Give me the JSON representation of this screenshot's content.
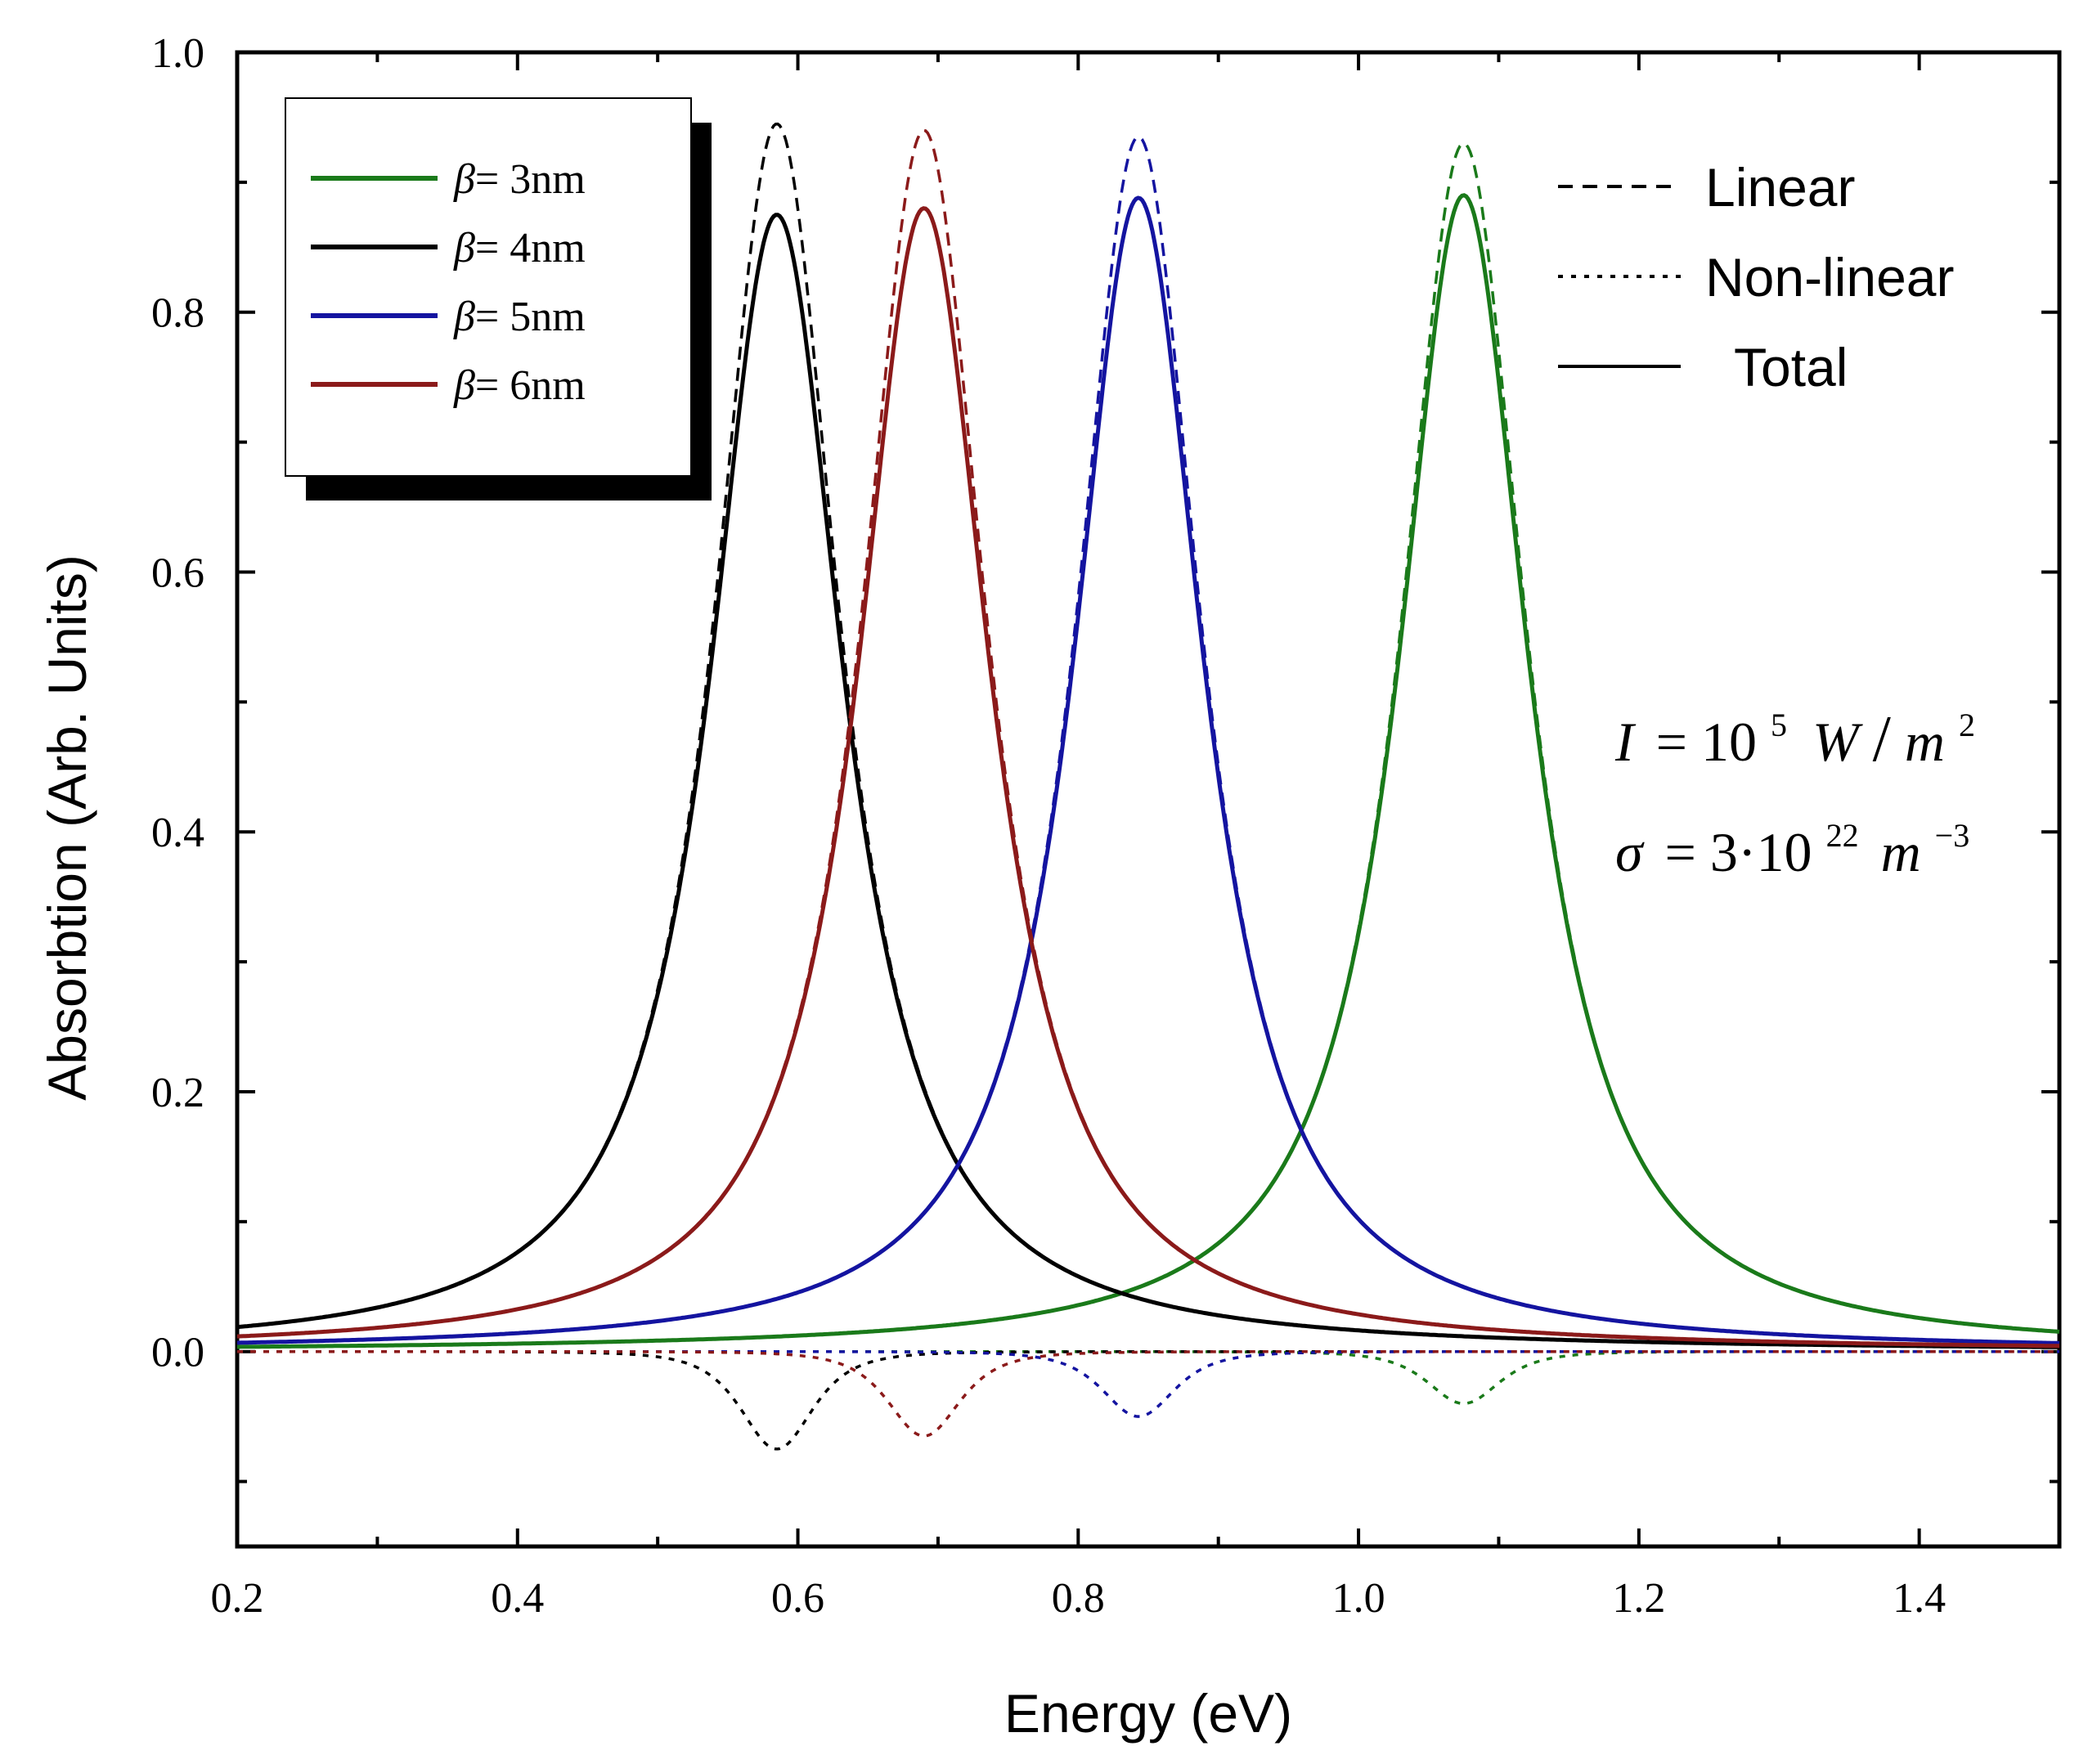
{
  "chart_data": {
    "type": "line",
    "title": "",
    "xlabel": "Energy (eV)",
    "ylabel": "Absorbtion (Arb. Units)",
    "xlim": [
      0.2,
      1.5
    ],
    "ylim": [
      -0.15,
      1.0
    ],
    "x_ticks": [
      "0.2",
      "0.4",
      "0.6",
      "0.8",
      "1.0",
      "1.2",
      "1.4"
    ],
    "x_tick_values": [
      0.2,
      0.4,
      0.6,
      0.8,
      1.0,
      1.2,
      1.4
    ],
    "y_ticks": [
      "0.0",
      "0.2",
      "0.4",
      "0.6",
      "0.8",
      "1.0"
    ],
    "y_tick_values": [
      0.0,
      0.2,
      0.4,
      0.6,
      0.8,
      1.0
    ],
    "grid": false,
    "series": [
      {
        "name": "β= 3nm",
        "symbol": "β",
        "label_suffix": "= 3nm",
        "color": "#1a7a1a",
        "peak_energy": 1.075,
        "linear_peak": 0.93,
        "total_peak": 0.89,
        "nonlinear_min": -0.04,
        "half_width": 0.055
      },
      {
        "name": "β= 4nm",
        "symbol": "β",
        "label_suffix": "= 4nm",
        "color": "#000000",
        "peak_energy": 0.585,
        "linear_peak": 0.945,
        "total_peak": 0.875,
        "nonlinear_min": -0.075,
        "half_width": 0.055
      },
      {
        "name": "β= 5nm",
        "symbol": "β",
        "label_suffix": "= 5nm",
        "color": "#1414a0",
        "peak_energy": 0.843,
        "linear_peak": 0.935,
        "total_peak": 0.888,
        "nonlinear_min": -0.05,
        "half_width": 0.055
      },
      {
        "name": "β= 6nm",
        "symbol": "β",
        "label_suffix": "= 6nm",
        "color": "#8b1a1a",
        "peak_energy": 0.69,
        "linear_peak": 0.94,
        "total_peak": 0.88,
        "nonlinear_min": -0.065,
        "half_width": 0.055
      }
    ],
    "line_styles": [
      {
        "label": "Linear",
        "style": "dashed"
      },
      {
        "label": "Non-linear",
        "style": "dotted"
      },
      {
        "label": "Total",
        "style": "solid"
      }
    ],
    "annotations": {
      "intensity": {
        "lhs": "I",
        "eq": "=",
        "base": "10",
        "exp": "5",
        "unit": "W",
        "slash": "/",
        "unit2": "m",
        "unit2_exp": "2"
      },
      "density": {
        "lhs": "σ",
        "eq": "=",
        "coef": "3·10",
        "exp": "22",
        "unit": "m",
        "unit_exp": "−3"
      }
    }
  }
}
